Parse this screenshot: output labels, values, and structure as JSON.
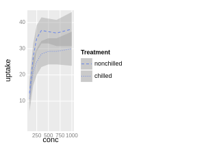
{
  "chart_data": {
    "type": "line",
    "x_label": "conc",
    "y_label": "uptake",
    "x": [
      95,
      175,
      250,
      350,
      500,
      675,
      1000
    ],
    "series": [
      {
        "name": "nonchilled",
        "color": "#6a86e8",
        "dash": "dashed",
        "values": [
          13,
          27,
          34,
          37,
          36.5,
          36,
          37.5
        ],
        "lower": [
          8,
          22,
          29,
          32,
          32,
          31,
          31
        ],
        "upper": [
          18,
          32,
          39,
          42,
          41.5,
          41,
          44
        ]
      },
      {
        "name": "chilled",
        "color": "#6a86e8",
        "dash": "dotted",
        "values": [
          11,
          21,
          25,
          28,
          29,
          29,
          30
        ],
        "lower": [
          6,
          16,
          20,
          23,
          24,
          24,
          23.5
        ],
        "upper": [
          16,
          26,
          30,
          33,
          34,
          34,
          36.5
        ]
      }
    ],
    "band_color": "#999999",
    "xlim": [
      50,
      1045
    ],
    "xticks": [
      250,
      500,
      750,
      1000
    ],
    "ylim": [
      -1.5,
      44.7
    ],
    "yticks": [
      10,
      20,
      30,
      40
    ],
    "grid": true,
    "legend": {
      "title": "Treatment",
      "position": "right"
    }
  }
}
